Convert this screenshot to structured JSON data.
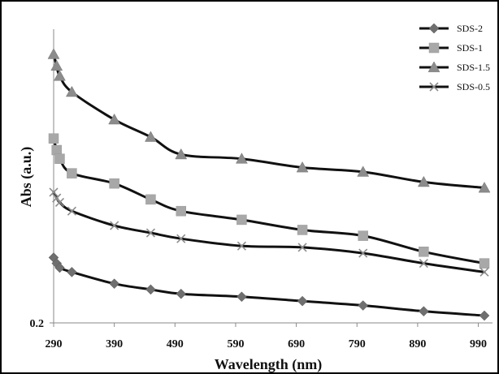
{
  "chart_data": {
    "type": "line",
    "xlabel": "Wavelength (nm)",
    "ylabel": "Abs (a.u.)",
    "xlim": [
      290,
      1000
    ],
    "ylim": [
      0.2,
      2.2
    ],
    "x_ticks": [
      290,
      390,
      490,
      590,
      690,
      790,
      890,
      990
    ],
    "y_ticks_labeled": [
      {
        "value": 0.2,
        "label": "0.2"
      }
    ],
    "legend_position": "top-right",
    "grid": false,
    "x": [
      290,
      295,
      300,
      320,
      390,
      450,
      500,
      600,
      700,
      800,
      900,
      1000
    ],
    "series": [
      {
        "name": "SDS-2",
        "marker": "diamond",
        "color": "#6f6f6f",
        "values": [
          0.65,
          0.61,
          0.58,
          0.55,
          0.47,
          0.43,
          0.4,
          0.38,
          0.35,
          0.32,
          0.28,
          0.25
        ]
      },
      {
        "name": "SDS-1",
        "marker": "square",
        "color": "#a8a8a8",
        "values": [
          1.47,
          1.39,
          1.33,
          1.23,
          1.16,
          1.05,
          0.97,
          0.91,
          0.84,
          0.8,
          0.69,
          0.61
        ]
      },
      {
        "name": "SDS-1.5",
        "marker": "triangle",
        "color": "#8c8c8c",
        "values": [
          2.05,
          1.97,
          1.9,
          1.79,
          1.6,
          1.48,
          1.36,
          1.33,
          1.27,
          1.24,
          1.17,
          1.13
        ]
      },
      {
        "name": "SDS-0.5",
        "marker": "x",
        "color": "#8c8c8c",
        "values": [
          1.1,
          1.06,
          1.03,
          0.97,
          0.87,
          0.82,
          0.78,
          0.73,
          0.72,
          0.68,
          0.61,
          0.55
        ]
      }
    ]
  }
}
